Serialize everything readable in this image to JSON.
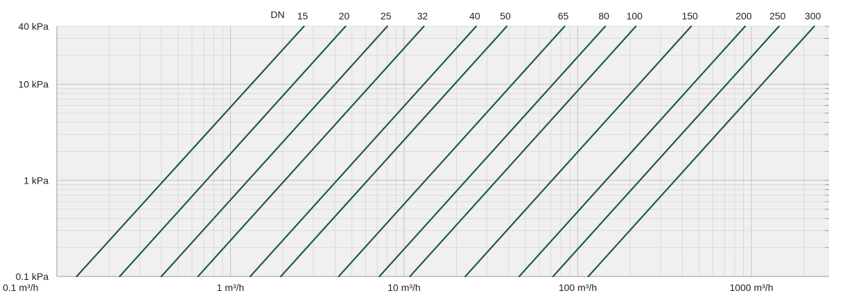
{
  "chart_data": {
    "type": "line",
    "x_scale": "log",
    "y_scale": "log",
    "xlim": [
      0.1,
      2800
    ],
    "ylim": [
      0.1,
      40
    ],
    "x_ticks": [
      {
        "value": 0.1,
        "label": "0.1 m³/h"
      },
      {
        "value": 1,
        "label": "1 m³/h"
      },
      {
        "value": 10,
        "label": "10 m³/h"
      },
      {
        "value": 100,
        "label": "100 m³/h"
      },
      {
        "value": 1000,
        "label": "1000 m³/h"
      }
    ],
    "y_ticks": [
      {
        "value": 0.1,
        "label": "0.1 kPa"
      },
      {
        "value": 1,
        "label": "1 kPa"
      },
      {
        "value": 10,
        "label": "10 kPa"
      },
      {
        "value": 40,
        "label": "40 kPa"
      }
    ],
    "series_title": "DN",
    "grid": true,
    "background": "#f0f0f0",
    "line_color": "#1e5a3c",
    "series": [
      {
        "name": "15",
        "x": [
          0.13,
          2.65
        ],
        "y": [
          0.1,
          40
        ]
      },
      {
        "name": "20",
        "x": [
          0.23,
          4.6
        ],
        "y": [
          0.1,
          40
        ]
      },
      {
        "name": "25",
        "x": [
          0.4,
          8.0
        ],
        "y": [
          0.1,
          40
        ]
      },
      {
        "name": "32",
        "x": [
          0.65,
          13.0
        ],
        "y": [
          0.1,
          40
        ]
      },
      {
        "name": "40",
        "x": [
          1.3,
          26.0
        ],
        "y": [
          0.1,
          40
        ]
      },
      {
        "name": "50",
        "x": [
          1.95,
          39.0
        ],
        "y": [
          0.1,
          40
        ]
      },
      {
        "name": "65",
        "x": [
          4.2,
          84.0
        ],
        "y": [
          0.1,
          40
        ]
      },
      {
        "name": "80",
        "x": [
          7.2,
          144.0
        ],
        "y": [
          0.1,
          40
        ]
      },
      {
        "name": "100",
        "x": [
          10.8,
          216.0
        ],
        "y": [
          0.1,
          40
        ]
      },
      {
        "name": "150",
        "x": [
          22.5,
          450.0
        ],
        "y": [
          0.1,
          40
        ]
      },
      {
        "name": "200",
        "x": [
          46.0,
          920.0
        ],
        "y": [
          0.1,
          40
        ]
      },
      {
        "name": "250",
        "x": [
          72.0,
          1440.0
        ],
        "y": [
          0.1,
          40
        ]
      },
      {
        "name": "300",
        "x": [
          115.0,
          2300.0
        ],
        "y": [
          0.1,
          40
        ]
      }
    ]
  }
}
